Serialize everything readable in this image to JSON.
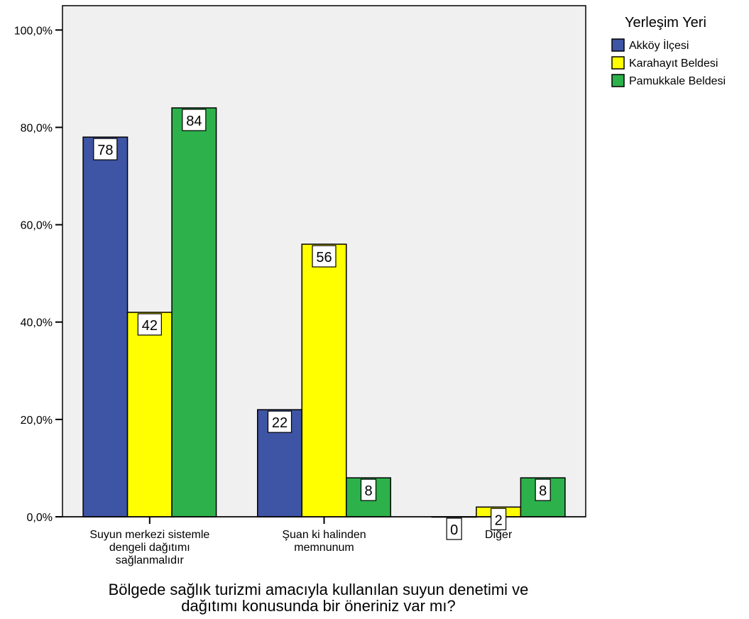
{
  "chart_data": {
    "type": "bar",
    "categories": [
      [
        "Suyun merkezi sistemle",
        "dengeli dağıtımı",
        "sağlanmalıdır"
      ],
      [
        "Şuan ki halinden",
        "memnunum"
      ],
      [
        "Diğer"
      ]
    ],
    "series": [
      {
        "name": "Akköy İlçesi",
        "color": "#3e54a4",
        "values": [
          78,
          22,
          0
        ],
        "labels": [
          "78",
          "22",
          "0"
        ]
      },
      {
        "name": "Karahayıt Beldesi",
        "color": "#ffff00",
        "values": [
          42,
          56,
          2
        ],
        "labels": [
          "42",
          "56",
          "2"
        ]
      },
      {
        "name": "Pamukkale Beldesi",
        "color": "#2db14b",
        "values": [
          84,
          8,
          8
        ],
        "labels": [
          "84",
          "8",
          "8"
        ]
      }
    ],
    "yticks": [
      "0,0%",
      "20,0%",
      "40,0%",
      "60,0%",
      "80,0%",
      "100,0%"
    ],
    "ytick_values": [
      0,
      20,
      40,
      60,
      80,
      100
    ],
    "ylim": [
      0,
      105
    ],
    "xlabel": [
      "Bölgede sağlık turizmi amacıyla kullanılan suyun denetimi ve",
      "dağıtımı konusunda bir öneriniz var mı?"
    ],
    "legend_title": "Yerleşim Yeri",
    "legend_position": "top-right",
    "plot_background": "#f0f0f0",
    "grid": false
  }
}
